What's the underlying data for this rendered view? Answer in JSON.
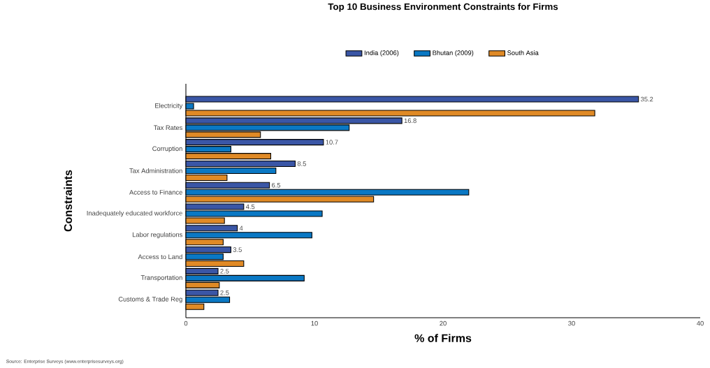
{
  "chart_data": {
    "type": "bar",
    "orientation": "horizontal",
    "title": "Top 10 Business Environment Constraints for Firms",
    "xlabel": "% of Firms",
    "ylabel": "Constraints",
    "categories": [
      "Electricity",
      "Tax Rates",
      "Corruption",
      "Tax Administration",
      "Access to Finance",
      "Inadequately educated workforce",
      "Labor regulations",
      "Access to Land",
      "Transportation",
      "Customs & Trade Reg"
    ],
    "series": [
      {
        "name": "India (2006)",
        "color": "#3a56a6",
        "values": [
          35.2,
          16.8,
          10.7,
          8.5,
          6.5,
          4.5,
          4,
          3.5,
          2.5,
          2.5
        ],
        "value_labels": [
          "35.2",
          "16.8",
          "10.7",
          "8.5",
          "6.5",
          "4.5",
          "4",
          "3.5",
          "2.5",
          "2.5"
        ]
      },
      {
        "name": "Bhutan (2009)",
        "color": "#0a78c4",
        "values": [
          0.6,
          12.7,
          3.5,
          7.0,
          22.0,
          10.6,
          9.8,
          2.9,
          9.2,
          3.4
        ]
      },
      {
        "name": "South Asia",
        "color": "#e08a26",
        "values": [
          31.8,
          5.8,
          6.6,
          3.2,
          14.6,
          3.0,
          2.9,
          4.5,
          2.6,
          1.4
        ]
      }
    ],
    "xlim": [
      0,
      40
    ],
    "xticks": [
      0,
      10,
      20,
      30,
      40
    ],
    "legend": "top",
    "grid": false,
    "annotations": [
      "Source: Enterprise Surveys (www.enterprisesurveys.org)"
    ]
  }
}
